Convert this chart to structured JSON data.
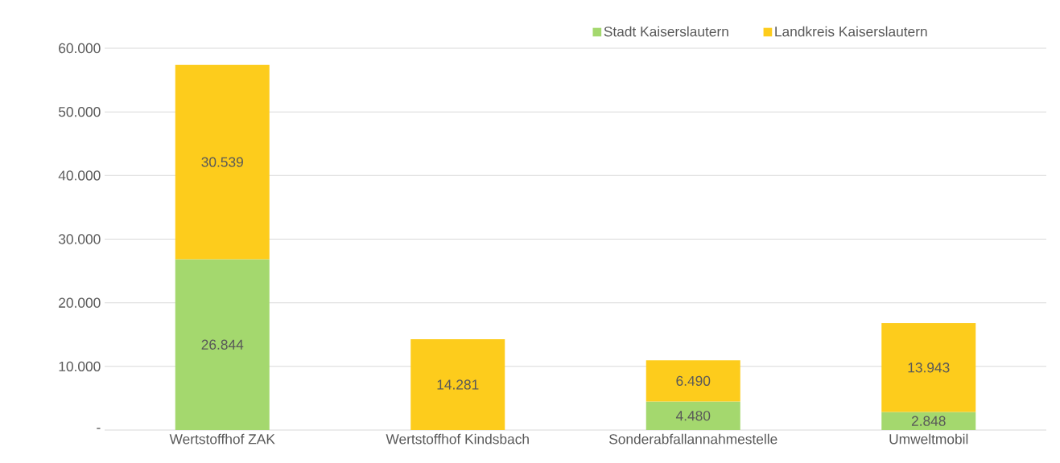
{
  "chart_data": {
    "type": "bar",
    "stacked": true,
    "categories": [
      "Wertstoffhof ZAK",
      "Wertstoffhof Kindsbach",
      "Sonderabfallannahmestelle",
      "Umweltmobil"
    ],
    "series": [
      {
        "name": "Stadt Kaiserslautern",
        "color": "#a4d86e",
        "values": [
          26844,
          null,
          4480,
          2848
        ],
        "value_labels": [
          "26.844",
          null,
          "4.480",
          "2.848"
        ]
      },
      {
        "name": "Landkreis Kaiserslautern",
        "color": "#fdcc1c",
        "values": [
          30539,
          14281,
          6490,
          13943
        ],
        "value_labels": [
          "30.539",
          "14.281",
          "6.490",
          "13.943"
        ]
      }
    ],
    "ylim": [
      0,
      60000
    ],
    "yticks": [
      {
        "value": 0,
        "label": "-"
      },
      {
        "value": 10000,
        "label": "10.000"
      },
      {
        "value": 20000,
        "label": "20.000"
      },
      {
        "value": 30000,
        "label": "30.000"
      },
      {
        "value": 40000,
        "label": "40.000"
      },
      {
        "value": 50000,
        "label": "50.000"
      },
      {
        "value": 60000,
        "label": "60.000"
      }
    ],
    "grid": "y",
    "legend": "top right"
  }
}
